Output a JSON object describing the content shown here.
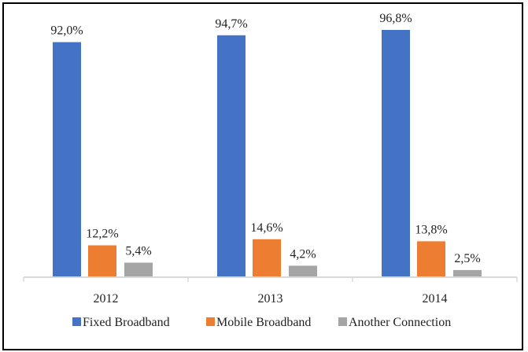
{
  "chart_data": {
    "type": "bar",
    "title": "",
    "xlabel": "",
    "ylabel": "",
    "categories": [
      "2012",
      "2013",
      "2014"
    ],
    "series": [
      {
        "name": "Fixed Broadband",
        "color": "#4472C4",
        "values": [
          92.0,
          94.7,
          96.8
        ],
        "labels": [
          "92,0%",
          "94,7%",
          "96,8%"
        ]
      },
      {
        "name": "Mobile Broadband",
        "color": "#ED7D31",
        "values": [
          12.2,
          14.6,
          13.8
        ],
        "labels": [
          "12,2%",
          "14,6%",
          "13,8%"
        ]
      },
      {
        "name": "Another Connection",
        "color": "#A5A5A5",
        "values": [
          5.4,
          4.2,
          2.5
        ],
        "labels": [
          "5,4%",
          "4,2%",
          "2,5%"
        ]
      }
    ],
    "ylim": [
      0,
      100
    ],
    "grid": false,
    "y_axis_visible": false,
    "legend": "bottom",
    "axis_color": "#D9D9D9"
  }
}
